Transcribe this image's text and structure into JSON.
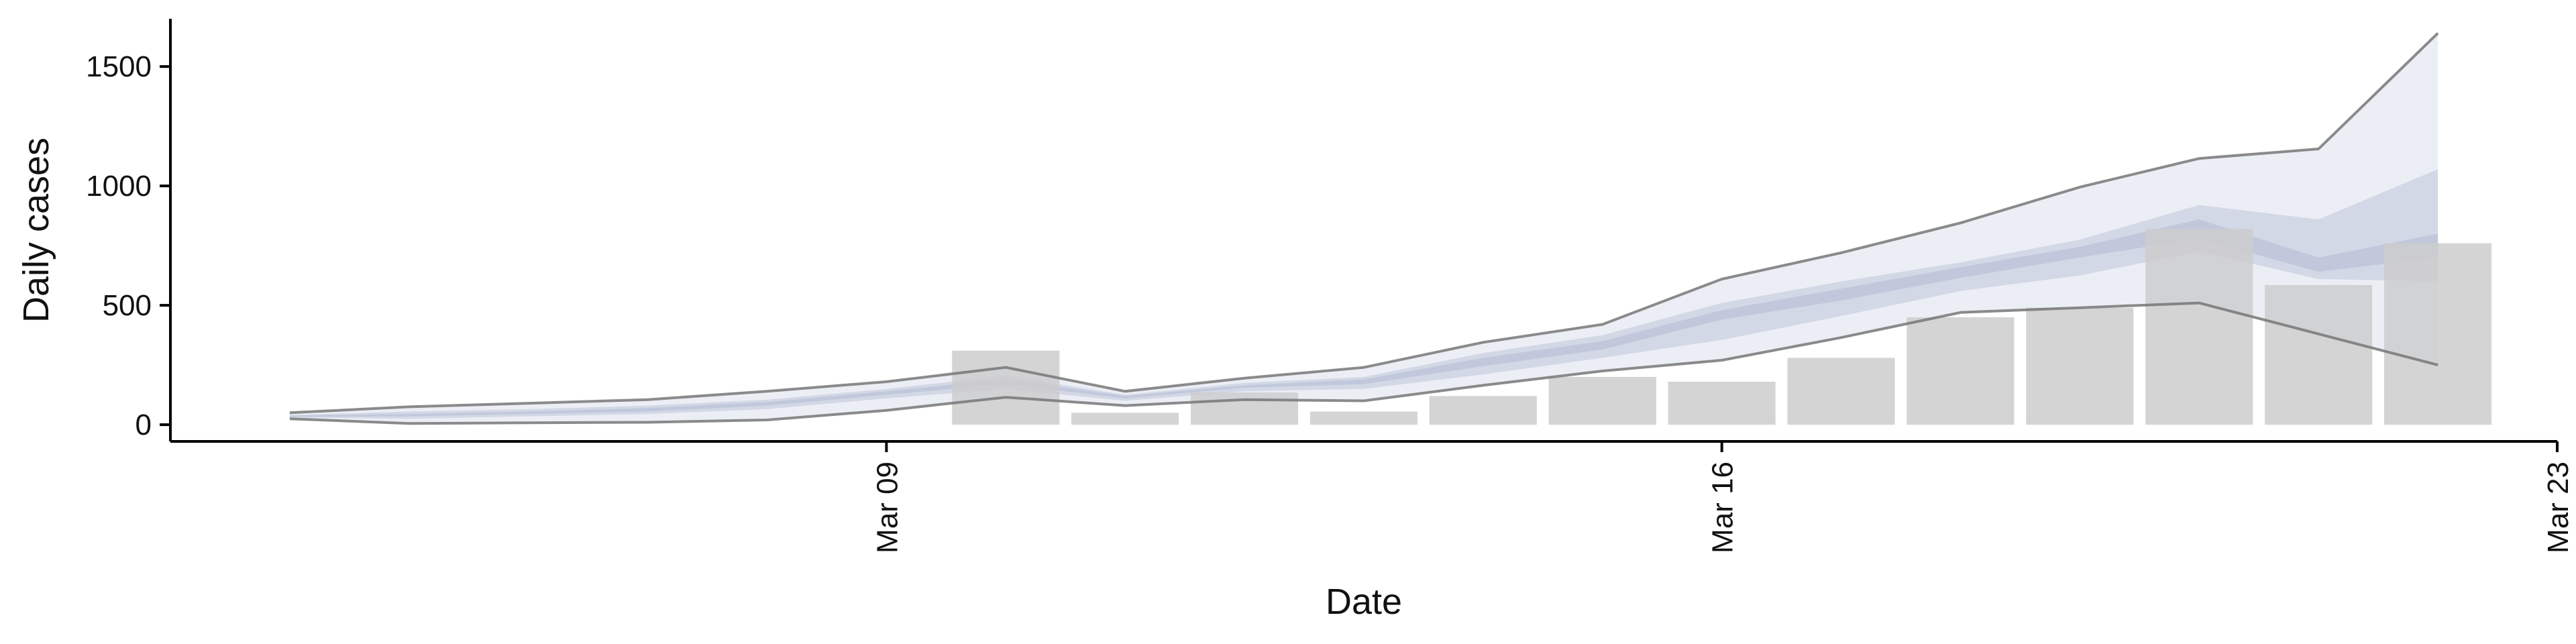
{
  "chart_data": {
    "type": "bar",
    "xlabel": "Date",
    "ylabel": "Daily cases",
    "xlim": [
      "2020-03-03",
      "2020-03-23"
    ],
    "ylim": [
      -70,
      1700
    ],
    "x_ticks": [
      {
        "date": "2020-03-09",
        "label": "Mar 09"
      },
      {
        "date": "2020-03-16",
        "label": "Mar 16"
      },
      {
        "date": "2020-03-23",
        "label": "Mar 23"
      }
    ],
    "y_ticks": [
      {
        "value": 0,
        "label": "0"
      },
      {
        "value": 500,
        "label": "500"
      },
      {
        "value": 1000,
        "label": "1000"
      },
      {
        "value": 1500,
        "label": "1500"
      }
    ],
    "grid": false,
    "bars": {
      "color": "#cccccc",
      "x": [
        "2020-03-10",
        "2020-03-11",
        "2020-03-12",
        "2020-03-13",
        "2020-03-14",
        "2020-03-15",
        "2020-03-16",
        "2020-03-17",
        "2020-03-18",
        "2020-03-19",
        "2020-03-20",
        "2020-03-21",
        "2020-03-22"
      ],
      "values": [
        310,
        50,
        135,
        55,
        120,
        200,
        180,
        280,
        450,
        490,
        820,
        585,
        760
      ]
    },
    "bands": {
      "x": [
        "2020-03-04",
        "2020-03-05",
        "2020-03-06",
        "2020-03-07",
        "2020-03-08",
        "2020-03-09",
        "2020-03-10",
        "2020-03-11",
        "2020-03-12",
        "2020-03-13",
        "2020-03-14",
        "2020-03-15",
        "2020-03-16",
        "2020-03-17",
        "2020-03-18",
        "2020-03-19",
        "2020-03-20",
        "2020-03-21",
        "2020-03-22"
      ],
      "outer_low": [
        25,
        5,
        8,
        10,
        20,
        60,
        115,
        80,
        105,
        100,
        165,
        225,
        270,
        365,
        470,
        490,
        510,
        380,
        250
      ],
      "outer_high": [
        50,
        75,
        90,
        105,
        140,
        180,
        240,
        140,
        195,
        240,
        345,
        420,
        610,
        720,
        845,
        995,
        1115,
        1155,
        1640
      ],
      "mid_low": [
        30,
        25,
        35,
        45,
        65,
        110,
        150,
        100,
        140,
        150,
        210,
        280,
        355,
        455,
        560,
        625,
        725,
        610,
        600
      ],
      "mid_high": [
        40,
        55,
        65,
        80,
        105,
        150,
        205,
        125,
        175,
        200,
        300,
        375,
        510,
        600,
        680,
        775,
        920,
        860,
        1070
      ],
      "inner_low": [
        33,
        35,
        45,
        55,
        80,
        125,
        170,
        110,
        155,
        170,
        245,
        315,
        440,
        520,
        615,
        700,
        780,
        640,
        700
      ],
      "inner_high": [
        38,
        45,
        55,
        70,
        95,
        140,
        190,
        120,
        165,
        190,
        280,
        350,
        480,
        570,
        660,
        745,
        860,
        700,
        800
      ],
      "outer_fill": "#eceef5",
      "mid_fill": "#d3d8e6",
      "inner_fill": "#c2c8dc",
      "outer_stroke": "#777777"
    }
  }
}
